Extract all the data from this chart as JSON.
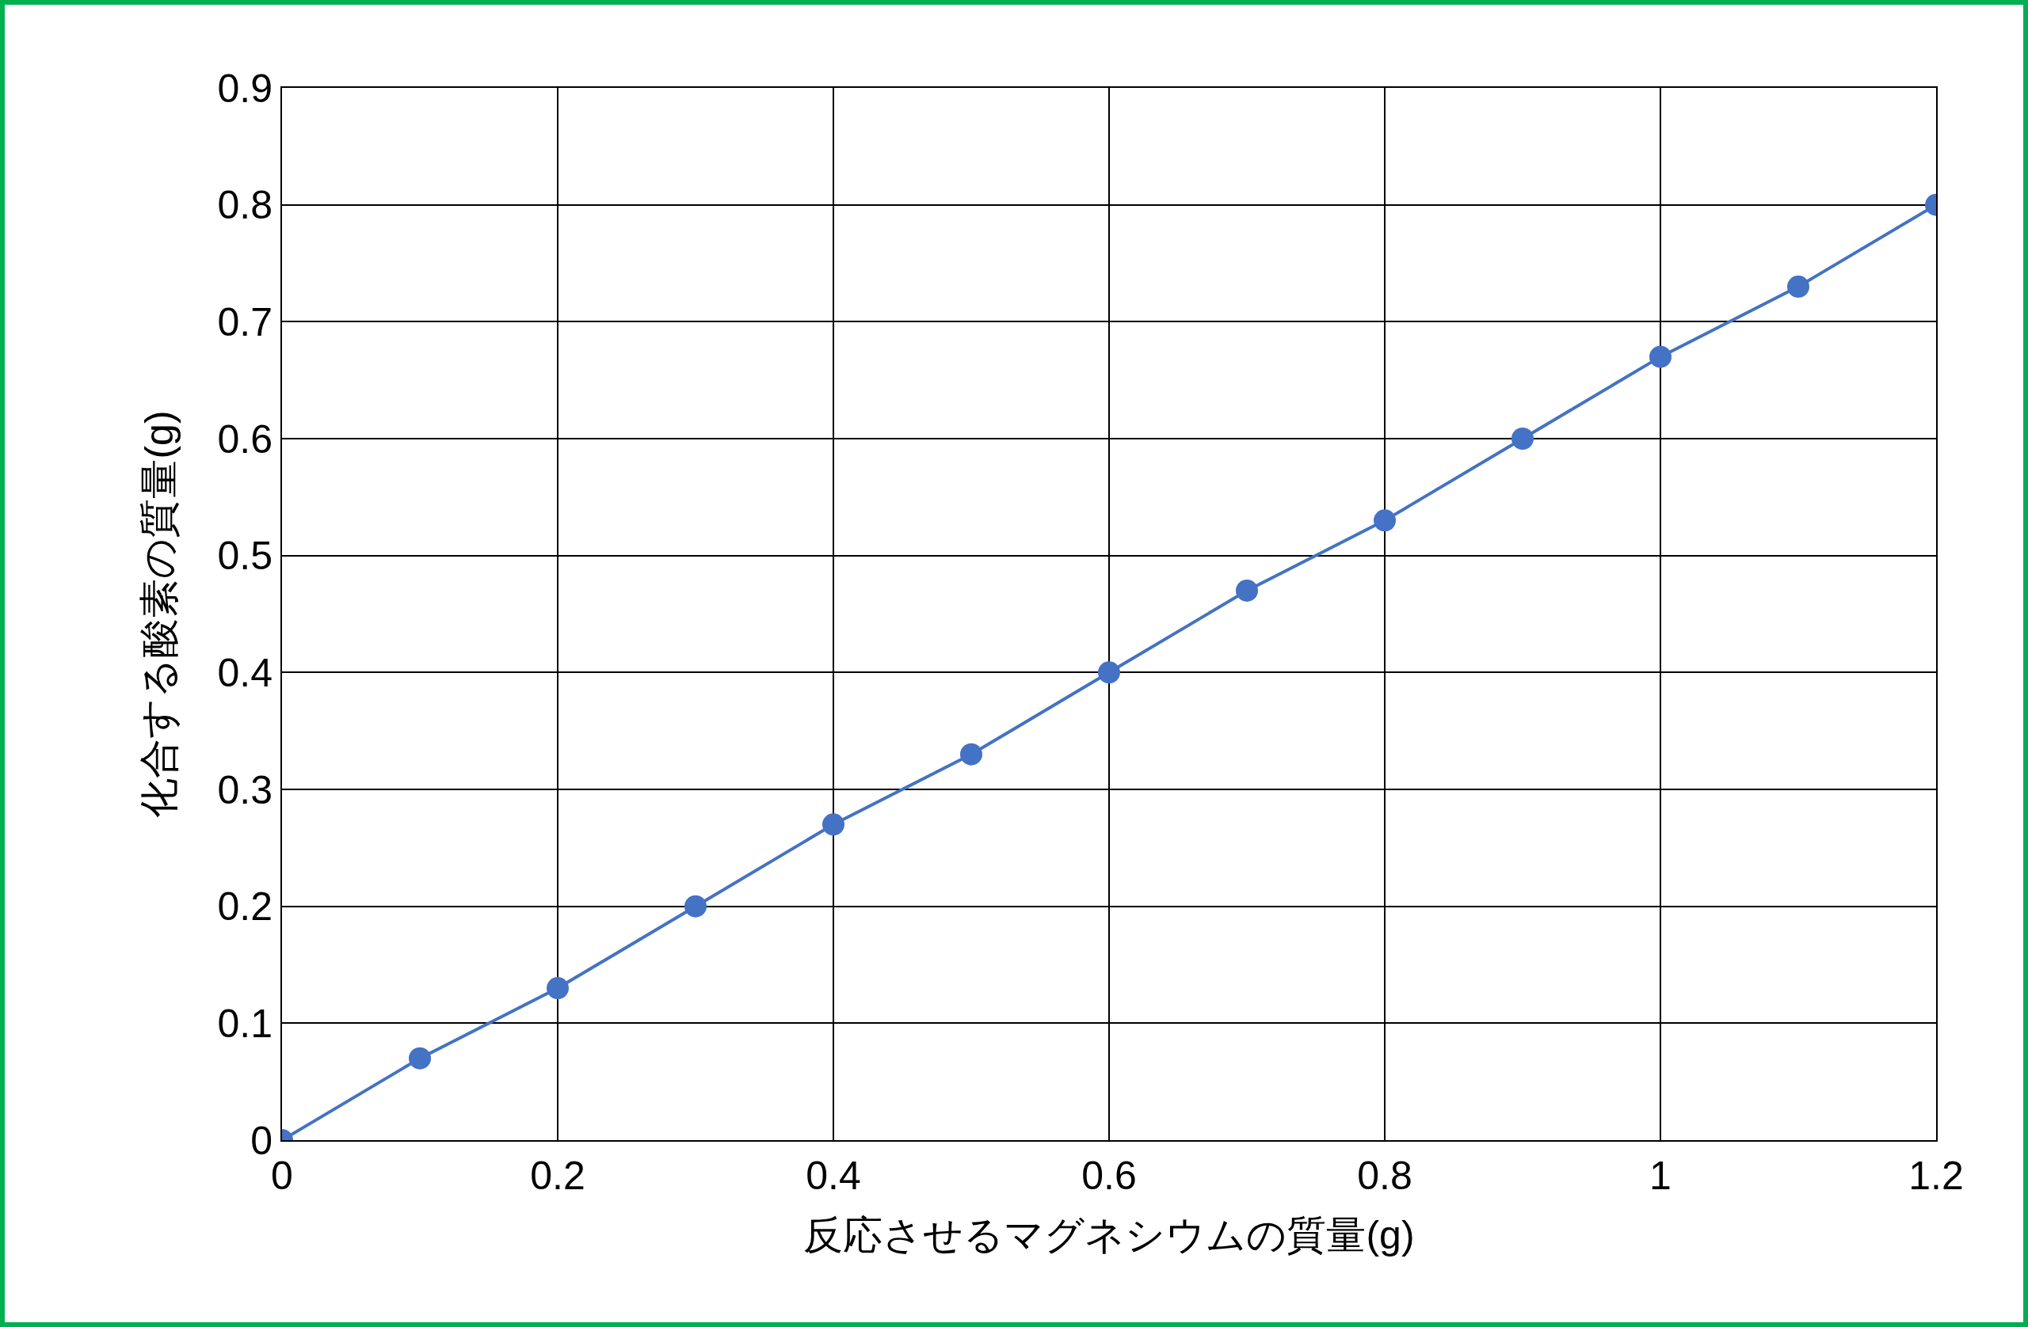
{
  "chart_data": {
    "type": "line",
    "xlabel": "反応させるマグネシウムの質量(g)",
    "ylabel": "化合する酸素の質量(g)",
    "x": [
      0,
      0.1,
      0.2,
      0.3,
      0.4,
      0.5,
      0.6,
      0.7,
      0.8,
      0.9,
      1,
      1.1,
      1.2
    ],
    "series": [
      {
        "color": "#4472c4",
        "values": [
          0,
          0.07,
          0.13,
          0.2,
          0.27,
          0.33,
          0.4,
          0.47,
          0.53,
          0.6,
          0.67,
          0.73,
          0.8
        ]
      }
    ],
    "xlim": [
      0,
      1.2
    ],
    "xticks": [
      0,
      0.2,
      0.4,
      0.6,
      0.8,
      1,
      1.2
    ],
    "ylim": [
      0,
      0.9
    ],
    "yticks": [
      0,
      0.1,
      0.2,
      0.3,
      0.4,
      0.5,
      0.6,
      0.7,
      0.8,
      0.9
    ],
    "grid": true,
    "marker": "circle",
    "line_style": "solid"
  }
}
